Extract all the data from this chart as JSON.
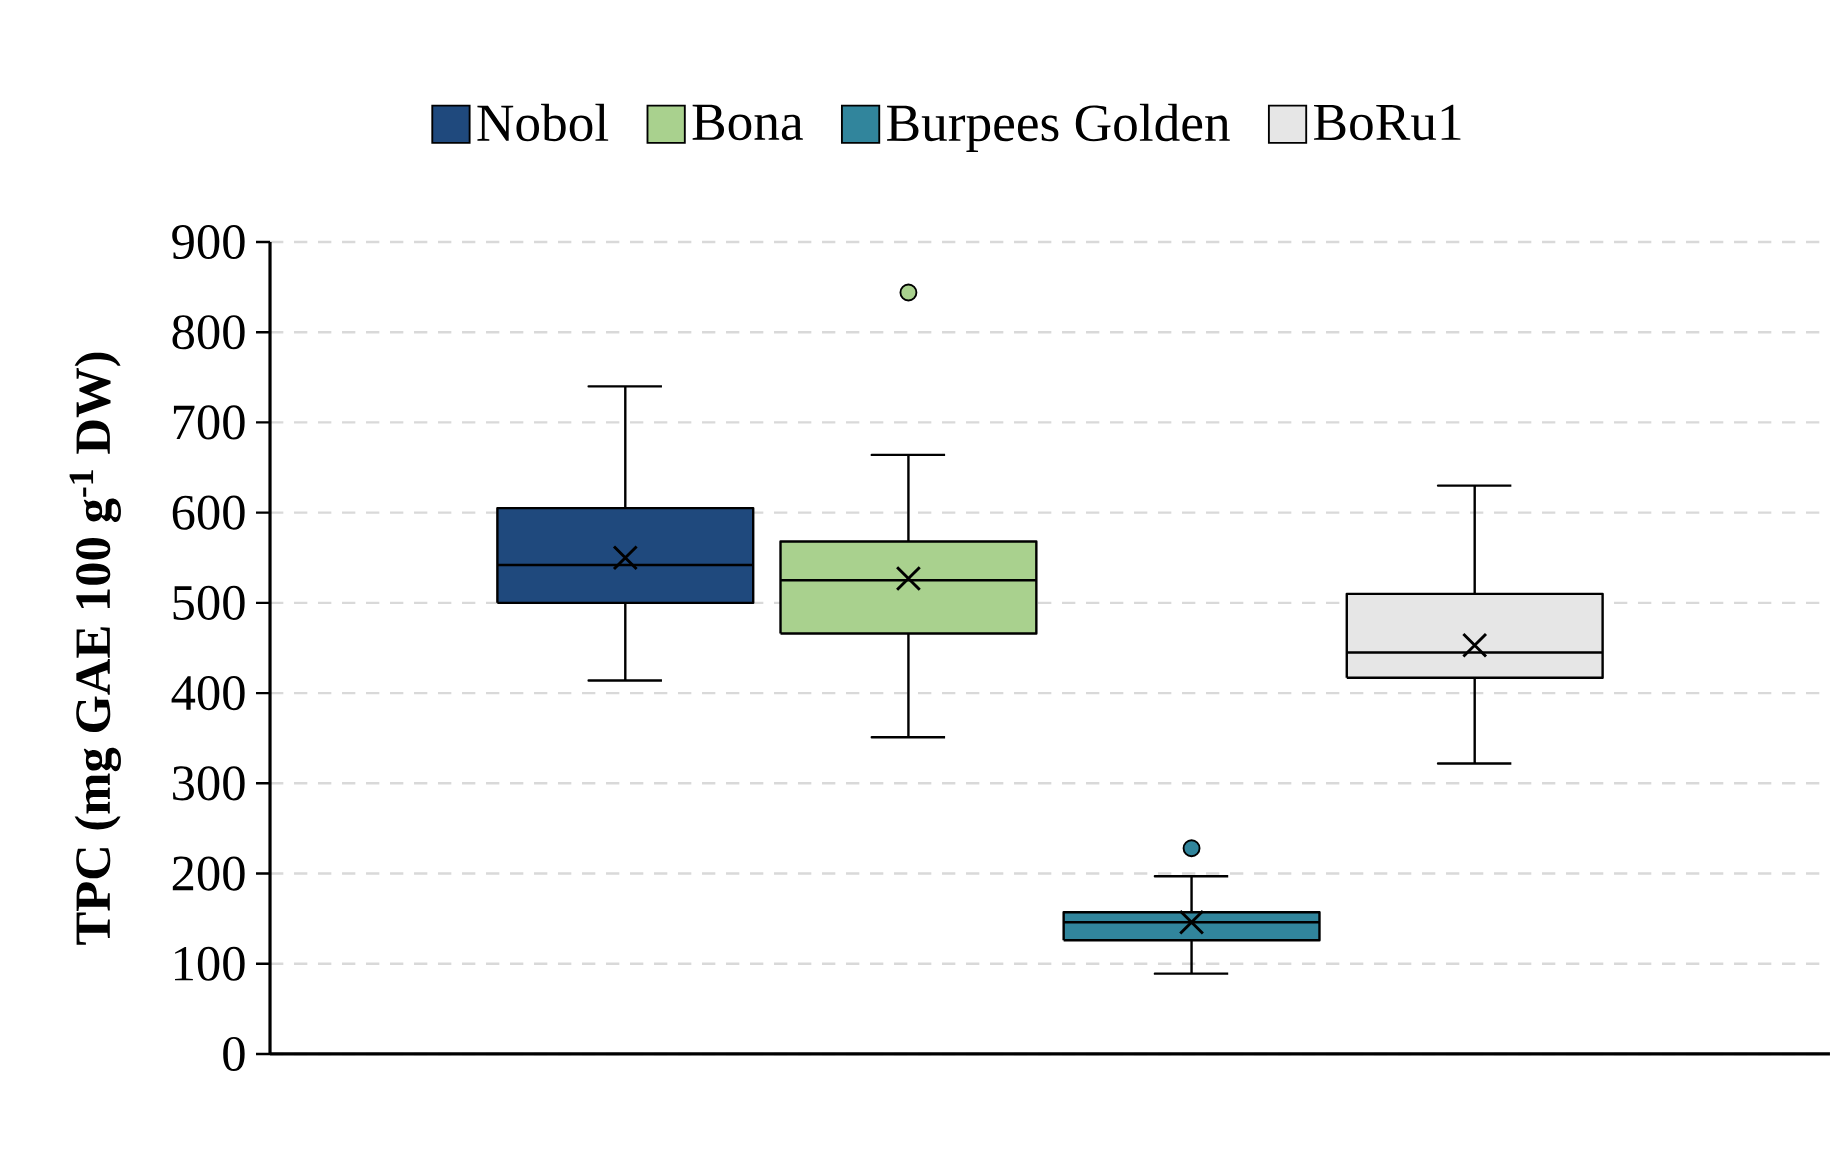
{
  "chart_data": {
    "type": "box",
    "ylabel": "TPC (mg GAE 100 g$^{-1}$ DW)",
    "categories": [
      null
    ],
    "series": [
      {
        "name": "Nobol",
        "color": "#1f497d",
        "boxes": [
          {
            "low": 414,
            "q1": 500,
            "median": 542,
            "q3": 605,
            "high": 740,
            "mean": 550
          }
        ]
      },
      {
        "name": "Bona",
        "color": "#a9d18e",
        "boxes": [
          {
            "low": 351,
            "q1": 466,
            "median": 525,
            "q3": 568,
            "high": 664,
            "mean": 527,
            "outliers": [
              844
            ]
          }
        ]
      },
      {
        "name": "Burpees Golden",
        "color": "#31859c",
        "boxes": [
          {
            "low": 89,
            "q1": 126,
            "median": 146,
            "q3": 157,
            "high": 197,
            "mean": 146,
            "outliers": [
              228
            ]
          }
        ]
      },
      {
        "name": "BoRu1",
        "color": "#e6e6e6",
        "boxes": [
          {
            "low": 322,
            "q1": 417,
            "median": 445,
            "q3": 510,
            "high": 630,
            "mean": 453
          }
        ]
      }
    ],
    "ylim": [
      0,
      900
    ],
    "yticks": [
      0,
      100,
      200,
      300,
      400,
      500,
      600,
      700,
      800,
      900
    ],
    "grid": "y",
    "legend": "top",
    "tick_labels": "y",
    "marker": "cross"
  }
}
